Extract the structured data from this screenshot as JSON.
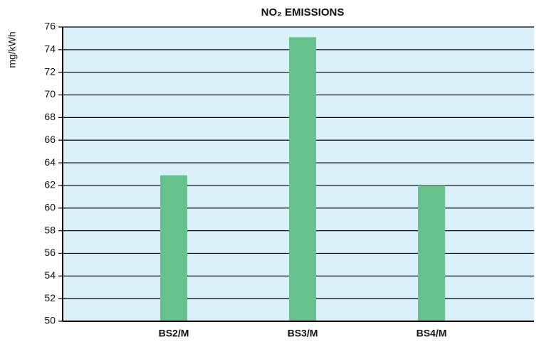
{
  "chart_data": {
    "type": "bar",
    "title": "NO₂ EMISSIONS",
    "y_label": "mg/kWh",
    "categories": [
      "BS2/M",
      "BS3/M",
      "BS4/M"
    ],
    "values": [
      62.9,
      75.1,
      62.0
    ],
    "color": "#66c18c",
    "ylim": [
      50,
      76
    ],
    "yticks": [
      50,
      52,
      54,
      56,
      58,
      60,
      62,
      64,
      66,
      68,
      70,
      72,
      74,
      76
    ],
    "grid": true
  }
}
